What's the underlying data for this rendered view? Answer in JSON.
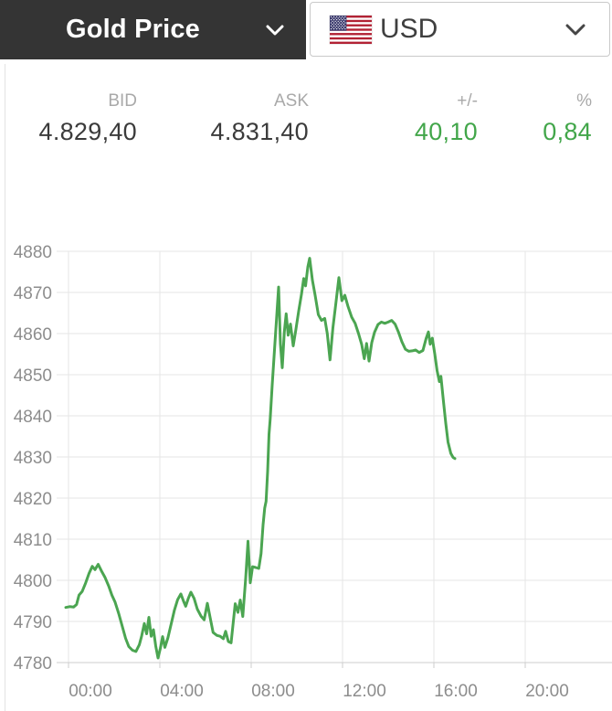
{
  "header": {
    "instrument_dropdown": {
      "label": "Gold Price"
    },
    "currency_dropdown": {
      "code": "USD",
      "flag": "us-flag"
    }
  },
  "quote": {
    "columns": [
      {
        "label": "BID",
        "value": "4.829,40",
        "tone": "dark"
      },
      {
        "label": "ASK",
        "value": "4.831,40",
        "tone": "dark"
      },
      {
        "label": "+/-",
        "value": "40,10",
        "tone": "green"
      },
      {
        "label": "%",
        "value": "0,84",
        "tone": "green"
      }
    ]
  },
  "colors": {
    "header_bg": "#343434",
    "header_text": "#ffffff",
    "box_border": "#c9c9c9",
    "quote_label_gray": "#a9a9a9",
    "value_dark": "#3b3b3b",
    "value_green": "#42a64a",
    "line_green": "#4ba551",
    "grid": "#e5e5e5",
    "axis": "#cdcdcd",
    "axis_label_gray": "#8d8d8d",
    "flag_red": "#B22234",
    "flag_blue": "#3C3B6E"
  },
  "chart_data": {
    "type": "line",
    "x_unit": "hours",
    "xlim_hours": [
      -0.52,
      23.8
    ],
    "ylim": [
      4780,
      4880
    ],
    "grid": true,
    "x_ticks": [
      {
        "t": 0,
        "label": "00:00"
      },
      {
        "t": 4,
        "label": "04:00"
      },
      {
        "t": 8,
        "label": "08:00"
      },
      {
        "t": 12,
        "label": "12:00"
      },
      {
        "t": 16,
        "label": "16:00"
      },
      {
        "t": 20,
        "label": "20:00"
      }
    ],
    "y_ticks": [
      4880,
      4870,
      4860,
      4850,
      4840,
      4830,
      4820,
      4810,
      4800,
      4790,
      4780
    ],
    "series": [
      {
        "name": "gold-price-usd",
        "points": [
          [
            -0.12,
            4793.4
          ],
          [
            0.05,
            4793.6
          ],
          [
            0.22,
            4793.5
          ],
          [
            0.35,
            4794.1
          ],
          [
            0.46,
            4796.4
          ],
          [
            0.6,
            4797.3
          ],
          [
            0.74,
            4799.2
          ],
          [
            0.9,
            4801.7
          ],
          [
            1.04,
            4803.4
          ],
          [
            1.16,
            4802.6
          ],
          [
            1.3,
            4803.9
          ],
          [
            1.44,
            4802.3
          ],
          [
            1.6,
            4800.7
          ],
          [
            1.76,
            4798.6
          ],
          [
            1.9,
            4796.4
          ],
          [
            2.04,
            4794.7
          ],
          [
            2.2,
            4791.9
          ],
          [
            2.36,
            4788.7
          ],
          [
            2.5,
            4785.9
          ],
          [
            2.64,
            4783.9
          ],
          [
            2.8,
            4783.0
          ],
          [
            2.95,
            4782.7
          ],
          [
            3.1,
            4784.3
          ],
          [
            3.2,
            4786.4
          ],
          [
            3.32,
            4789.5
          ],
          [
            3.42,
            4787.0
          ],
          [
            3.52,
            4791.0
          ],
          [
            3.62,
            4786.4
          ],
          [
            3.72,
            4788.0
          ],
          [
            3.82,
            4784.0
          ],
          [
            3.92,
            4781.1
          ],
          [
            4.02,
            4783.4
          ],
          [
            4.12,
            4786.3
          ],
          [
            4.22,
            4783.7
          ],
          [
            4.35,
            4786.0
          ],
          [
            4.5,
            4789.5
          ],
          [
            4.64,
            4792.8
          ],
          [
            4.78,
            4795.3
          ],
          [
            4.92,
            4796.7
          ],
          [
            5.04,
            4794.9
          ],
          [
            5.13,
            4793.7
          ],
          [
            5.25,
            4795.7
          ],
          [
            5.36,
            4797.1
          ],
          [
            5.5,
            4795.6
          ],
          [
            5.64,
            4793.0
          ],
          [
            5.8,
            4791.3
          ],
          [
            5.94,
            4790.4
          ],
          [
            6.08,
            4794.4
          ],
          [
            6.2,
            4791.0
          ],
          [
            6.33,
            4787.3
          ],
          [
            6.5,
            4786.6
          ],
          [
            6.64,
            4786.4
          ],
          [
            6.78,
            4785.8
          ],
          [
            6.88,
            4787.6
          ],
          [
            7.0,
            4785.1
          ],
          [
            7.12,
            4784.8
          ],
          [
            7.3,
            4794.3
          ],
          [
            7.42,
            4792.2
          ],
          [
            7.52,
            4795.2
          ],
          [
            7.63,
            4791.2
          ],
          [
            7.76,
            4800.6
          ],
          [
            7.86,
            4809.5
          ],
          [
            7.96,
            4799.4
          ],
          [
            8.06,
            4803.3
          ],
          [
            8.2,
            4803.1
          ],
          [
            8.33,
            4802.9
          ],
          [
            8.43,
            4806.5
          ],
          [
            8.52,
            4813.5
          ],
          [
            8.59,
            4817.6
          ],
          [
            8.65,
            4819.2
          ],
          [
            8.72,
            4826.5
          ],
          [
            8.78,
            4835.5
          ],
          [
            8.83,
            4839.2
          ],
          [
            8.92,
            4847.5
          ],
          [
            9.02,
            4856.0
          ],
          [
            9.12,
            4864.5
          ],
          [
            9.2,
            4871.3
          ],
          [
            9.28,
            4857.5
          ],
          [
            9.36,
            4851.7
          ],
          [
            9.45,
            4860.5
          ],
          [
            9.53,
            4864.8
          ],
          [
            9.62,
            4859.6
          ],
          [
            9.72,
            4862.3
          ],
          [
            9.84,
            4857.0
          ],
          [
            9.95,
            4860.8
          ],
          [
            10.08,
            4865.5
          ],
          [
            10.2,
            4869.5
          ],
          [
            10.3,
            4873.4
          ],
          [
            10.38,
            4871.6
          ],
          [
            10.48,
            4876.2
          ],
          [
            10.56,
            4878.3
          ],
          [
            10.68,
            4873.0
          ],
          [
            10.8,
            4869.3
          ],
          [
            10.94,
            4864.6
          ],
          [
            11.08,
            4863.2
          ],
          [
            11.22,
            4863.7
          ],
          [
            11.33,
            4860.0
          ],
          [
            11.45,
            4853.6
          ],
          [
            11.58,
            4861.5
          ],
          [
            11.7,
            4867.0
          ],
          [
            11.84,
            4873.6
          ],
          [
            11.97,
            4868.0
          ],
          [
            12.1,
            4869.3
          ],
          [
            12.24,
            4866.6
          ],
          [
            12.4,
            4864.0
          ],
          [
            12.55,
            4862.5
          ],
          [
            12.7,
            4860.0
          ],
          [
            12.84,
            4857.3
          ],
          [
            12.95,
            4853.9
          ],
          [
            13.05,
            4857.6
          ],
          [
            13.16,
            4853.3
          ],
          [
            13.28,
            4857.8
          ],
          [
            13.4,
            4860.3
          ],
          [
            13.55,
            4862.2
          ],
          [
            13.7,
            4862.8
          ],
          [
            13.85,
            4862.5
          ],
          [
            14.0,
            4862.8
          ],
          [
            14.15,
            4863.2
          ],
          [
            14.3,
            4862.3
          ],
          [
            14.45,
            4860.3
          ],
          [
            14.6,
            4858.0
          ],
          [
            14.75,
            4856.2
          ],
          [
            14.9,
            4855.7
          ],
          [
            15.05,
            4855.8
          ],
          [
            15.2,
            4856.0
          ],
          [
            15.36,
            4855.4
          ],
          [
            15.52,
            4855.9
          ],
          [
            15.66,
            4858.8
          ],
          [
            15.76,
            4860.4
          ],
          [
            15.84,
            4857.4
          ],
          [
            15.93,
            4858.9
          ],
          [
            16.04,
            4855.0
          ],
          [
            16.14,
            4851.0
          ],
          [
            16.24,
            4848.3
          ],
          [
            16.31,
            4849.6
          ],
          [
            16.42,
            4843.5
          ],
          [
            16.52,
            4838.2
          ],
          [
            16.62,
            4833.6
          ],
          [
            16.74,
            4830.9
          ],
          [
            16.84,
            4829.9
          ],
          [
            16.92,
            4829.6
          ]
        ]
      }
    ]
  }
}
